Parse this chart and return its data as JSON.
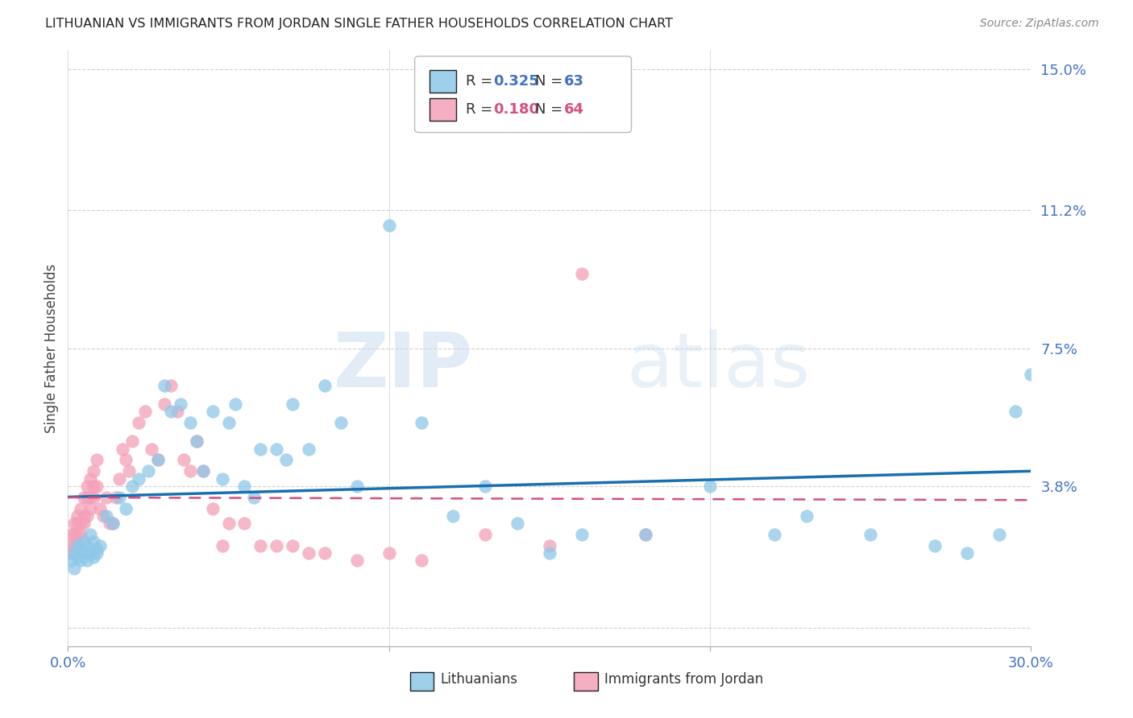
{
  "title": "LITHUANIAN VS IMMIGRANTS FROM JORDAN SINGLE FATHER HOUSEHOLDS CORRELATION CHART",
  "source": "Source: ZipAtlas.com",
  "ylabel": "Single Father Households",
  "xlim": [
    0.0,
    0.3
  ],
  "ylim": [
    -0.005,
    0.155
  ],
  "yticks": [
    0.15,
    0.112,
    0.075,
    0.038,
    0.0
  ],
  "ytick_labels": [
    "15.0%",
    "11.2%",
    "7.5%",
    "3.8%",
    ""
  ],
  "xticks": [
    0.0,
    0.1,
    0.2,
    0.3
  ],
  "xtick_labels_show": [
    "0.0%",
    "30.0%"
  ],
  "xtick_show_positions": [
    0.0,
    0.3
  ],
  "grid_color": "#cccccc",
  "blue_color": "#8ec8e8",
  "pink_color": "#f4a0b8",
  "blue_line_color": "#1a6faf",
  "pink_line_color": "#d45080",
  "watermark_zip": "ZIP",
  "watermark_atlas": "atlas",
  "legend_R1": "0.325",
  "legend_N1": "63",
  "legend_R2": "0.180",
  "legend_N2": "64",
  "label1": "Lithuanians",
  "label2": "Immigrants from Jordan",
  "blue_x": [
    0.001,
    0.002,
    0.002,
    0.003,
    0.003,
    0.004,
    0.004,
    0.005,
    0.005,
    0.006,
    0.006,
    0.007,
    0.007,
    0.008,
    0.008,
    0.009,
    0.009,
    0.01,
    0.012,
    0.014,
    0.016,
    0.018,
    0.02,
    0.022,
    0.025,
    0.028,
    0.03,
    0.032,
    0.035,
    0.038,
    0.04,
    0.042,
    0.045,
    0.048,
    0.05,
    0.052,
    0.055,
    0.058,
    0.06,
    0.065,
    0.068,
    0.07,
    0.075,
    0.08,
    0.085,
    0.09,
    0.1,
    0.11,
    0.12,
    0.13,
    0.14,
    0.15,
    0.16,
    0.18,
    0.2,
    0.22,
    0.23,
    0.25,
    0.27,
    0.28,
    0.29,
    0.295,
    0.3
  ],
  "blue_y": [
    0.018,
    0.02,
    0.016,
    0.022,
    0.019,
    0.018,
    0.021,
    0.02,
    0.023,
    0.018,
    0.022,
    0.02,
    0.025,
    0.019,
    0.023,
    0.021,
    0.02,
    0.022,
    0.03,
    0.028,
    0.035,
    0.032,
    0.038,
    0.04,
    0.042,
    0.045,
    0.065,
    0.058,
    0.06,
    0.055,
    0.05,
    0.042,
    0.058,
    0.04,
    0.055,
    0.06,
    0.038,
    0.035,
    0.048,
    0.048,
    0.045,
    0.06,
    0.048,
    0.065,
    0.055,
    0.038,
    0.108,
    0.055,
    0.03,
    0.038,
    0.028,
    0.02,
    0.025,
    0.025,
    0.038,
    0.025,
    0.03,
    0.025,
    0.022,
    0.02,
    0.025,
    0.058,
    0.068
  ],
  "pink_x": [
    0.001,
    0.001,
    0.001,
    0.002,
    0.002,
    0.002,
    0.003,
    0.003,
    0.003,
    0.004,
    0.004,
    0.004,
    0.005,
    0.005,
    0.005,
    0.006,
    0.006,
    0.006,
    0.007,
    0.007,
    0.007,
    0.008,
    0.008,
    0.008,
    0.009,
    0.009,
    0.01,
    0.011,
    0.012,
    0.013,
    0.014,
    0.015,
    0.016,
    0.017,
    0.018,
    0.019,
    0.02,
    0.022,
    0.024,
    0.026,
    0.028,
    0.03,
    0.032,
    0.034,
    0.036,
    0.038,
    0.04,
    0.042,
    0.045,
    0.048,
    0.05,
    0.055,
    0.06,
    0.065,
    0.07,
    0.075,
    0.08,
    0.09,
    0.1,
    0.11,
    0.13,
    0.15,
    0.16,
    0.18
  ],
  "pink_y": [
    0.025,
    0.022,
    0.02,
    0.028,
    0.025,
    0.022,
    0.03,
    0.028,
    0.025,
    0.032,
    0.028,
    0.025,
    0.035,
    0.03,
    0.028,
    0.038,
    0.035,
    0.03,
    0.04,
    0.035,
    0.032,
    0.042,
    0.038,
    0.035,
    0.045,
    0.038,
    0.032,
    0.03,
    0.035,
    0.028,
    0.028,
    0.035,
    0.04,
    0.048,
    0.045,
    0.042,
    0.05,
    0.055,
    0.058,
    0.048,
    0.045,
    0.06,
    0.065,
    0.058,
    0.045,
    0.042,
    0.05,
    0.042,
    0.032,
    0.022,
    0.028,
    0.028,
    0.022,
    0.022,
    0.022,
    0.02,
    0.02,
    0.018,
    0.02,
    0.018,
    0.025,
    0.022,
    0.095,
    0.025
  ]
}
